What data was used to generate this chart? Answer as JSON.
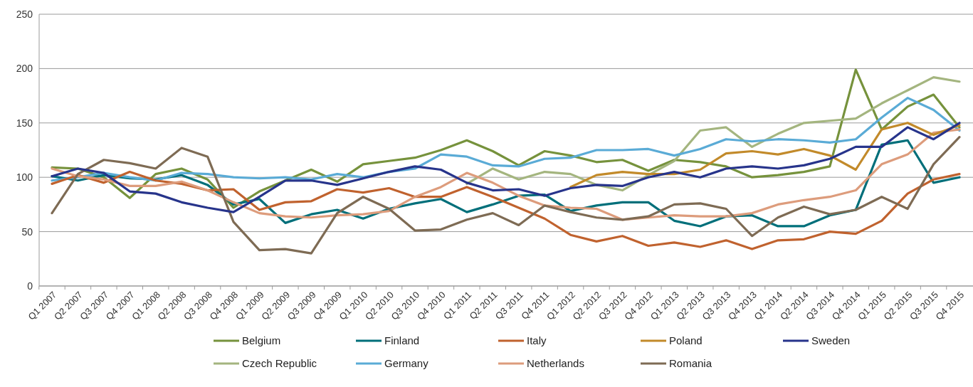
{
  "chart_data": {
    "type": "line",
    "categories": [
      "Q1 2007",
      "Q2 2007",
      "Q3 2007",
      "Q4 2007",
      "Q1 2008",
      "Q2 2008",
      "Q3 2008",
      "Q4 2008",
      "Q1 2009",
      "Q2 2009",
      "Q3 2009",
      "Q4 2009",
      "Q1 2010",
      "Q2 2010",
      "Q3 2010",
      "Q4 2010",
      "Q1 2011",
      "Q2 2011",
      "Q3 2011",
      "Q4 2011",
      "Q1 2012",
      "Q2 2012",
      "Q3 2012",
      "Q4 2012",
      "Q1 2013",
      "Q2 2013",
      "Q3 2013",
      "Q4 2013",
      "Q1 2014",
      "Q2 2014",
      "Q3 2014",
      "Q4 2014",
      "Q1 2015",
      "Q2 2015",
      "Q3 2015",
      "Q4 2015"
    ],
    "ylim": [
      0,
      250
    ],
    "yticks": [
      0,
      50,
      100,
      150,
      200,
      250
    ],
    "grid": "y",
    "legend": "bottom",
    "line_style": "solid",
    "marker": "none",
    "series": [
      {
        "name": "Belgium",
        "color": "#76923c",
        "values": [
          109,
          108,
          100,
          81,
          103,
          108,
          98,
          72,
          87,
          97,
          107,
          96,
          112,
          115,
          118,
          125,
          134,
          124,
          111,
          124,
          120,
          114,
          116,
          106,
          116,
          114,
          110,
          100,
          102,
          105,
          110,
          199,
          144,
          165,
          176,
          146
        ]
      },
      {
        "name": "Czech Republic",
        "color": "#a4b57f",
        "values": [
          null,
          null,
          null,
          null,
          null,
          null,
          null,
          null,
          null,
          null,
          null,
          null,
          null,
          null,
          null,
          null,
          94,
          108,
          98,
          105,
          103,
          93,
          88,
          102,
          115,
          143,
          146,
          128,
          140,
          150,
          152,
          154,
          168,
          180,
          192,
          188
        ]
      },
      {
        "name": "Finland",
        "color": "#006f7a",
        "values": [
          101,
          97,
          102,
          99,
          98,
          102,
          93,
          75,
          80,
          58,
          66,
          70,
          62,
          71,
          76,
          80,
          68,
          75,
          83,
          84,
          69,
          74,
          77,
          77,
          60,
          55,
          64,
          65,
          55,
          55,
          65,
          70,
          130,
          134,
          95,
          100
        ]
      },
      {
        "name": "Germany",
        "color": "#5aabd6",
        "values": [
          97,
          100,
          104,
          100,
          97,
          104,
          103,
          100,
          99,
          100,
          98,
          103,
          100,
          105,
          108,
          121,
          119,
          111,
          110,
          117,
          118,
          125,
          125,
          126,
          120,
          126,
          135,
          133,
          135,
          134,
          132,
          135,
          155,
          173,
          162,
          143
        ]
      },
      {
        "name": "Italy",
        "color": "#c0622e",
        "values": [
          94,
          102,
          95,
          105,
          97,
          94,
          88,
          89,
          70,
          77,
          78,
          89,
          86,
          90,
          82,
          82,
          91,
          82,
          72,
          62,
          47,
          41,
          46,
          37,
          40,
          36,
          42,
          34,
          42,
          43,
          50,
          48,
          60,
          85,
          98,
          103
        ]
      },
      {
        "name": "Netherlands",
        "color": "#dd9c7c",
        "values": [
          108,
          101,
          98,
          92,
          92,
          96,
          88,
          77,
          67,
          64,
          63,
          65,
          66,
          69,
          82,
          91,
          104,
          95,
          83,
          74,
          72,
          71,
          61,
          63,
          65,
          64,
          64,
          67,
          75,
          79,
          82,
          88,
          112,
          121,
          141,
          144
        ]
      },
      {
        "name": "Poland",
        "color": "#c28a2a",
        "values": [
          null,
          null,
          null,
          null,
          null,
          null,
          null,
          null,
          null,
          null,
          null,
          null,
          null,
          null,
          null,
          null,
          null,
          null,
          null,
          null,
          91,
          102,
          105,
          103,
          103,
          107,
          122,
          124,
          121,
          126,
          120,
          107,
          144,
          150,
          139,
          148
        ]
      },
      {
        "name": "Romania",
        "color": "#7e6b54",
        "values": [
          67,
          103,
          116,
          113,
          108,
          127,
          119,
          59,
          33,
          34,
          30,
          67,
          82,
          71,
          51,
          52,
          61,
          67,
          56,
          74,
          68,
          63,
          61,
          64,
          75,
          76,
          71,
          46,
          63,
          73,
          66,
          70,
          82,
          71,
          112,
          137
        ]
      },
      {
        "name": "Sweden",
        "color": "#27348b",
        "values": [
          101,
          108,
          104,
          87,
          85,
          77,
          72,
          68,
          82,
          97,
          97,
          93,
          99,
          105,
          110,
          107,
          95,
          88,
          89,
          83,
          90,
          93,
          92,
          100,
          105,
          100,
          108,
          110,
          108,
          111,
          117,
          128,
          128,
          146,
          135,
          150
        ]
      }
    ]
  }
}
